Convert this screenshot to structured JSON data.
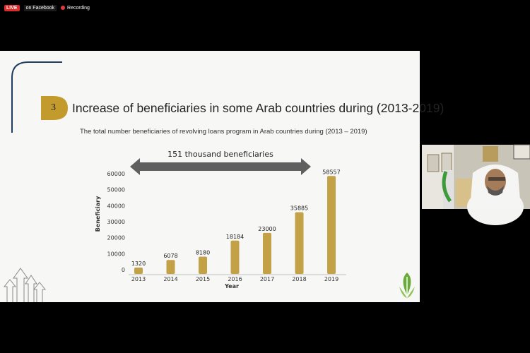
{
  "meeting": {
    "live_label": "LIVE",
    "platform_label": "on Facebook",
    "recording_label": "Recording"
  },
  "slide": {
    "badge_number": "3",
    "title": "Increase  of beneficiaries in some Arab countries during (2013-2019)",
    "subtitle": "The total number beneficiaries of revolving loans program in Arab countries during (2013 – 2019)",
    "arrow_label": "151 thousand beneficiaries",
    "colors": {
      "bar": "#c3a146",
      "badge": "#c39a2c",
      "arrow": "#5f5f5f",
      "arc": "#1f3e5e",
      "leaf": "#6aaa38"
    }
  },
  "chart_data": {
    "type": "bar",
    "categories": [
      "2013",
      "2014",
      "2015",
      "2016",
      "2017",
      "2018",
      "2019"
    ],
    "values": [
      1320,
      6078,
      8180,
      18184,
      23000,
      35885,
      58557
    ],
    "xlabel": "Year",
    "ylabel": "Beneficiary",
    "yticks": [
      0,
      10000,
      20000,
      30000,
      40000,
      50000,
      60000
    ],
    "ylim": [
      0,
      60000
    ],
    "grid": false,
    "legend": "none"
  }
}
